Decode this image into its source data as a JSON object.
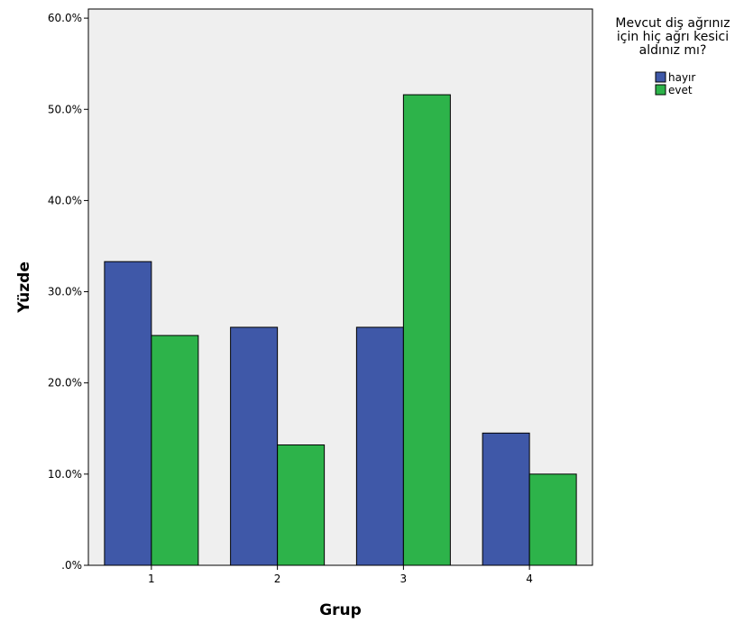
{
  "chart_data": {
    "type": "bar",
    "categories": [
      "1",
      "2",
      "3",
      "4"
    ],
    "series": [
      {
        "name": "hayır",
        "color": "#3f58a8",
        "values": [
          33.3,
          26.1,
          26.1,
          14.5
        ]
      },
      {
        "name": "evet",
        "color": "#2db34a",
        "values": [
          25.2,
          13.2,
          51.6,
          10.0
        ]
      }
    ],
    "xlabel": "Grup",
    "ylabel": "Yüzde",
    "ylim": [
      0,
      61
    ],
    "yticks": [
      0,
      10,
      20,
      30,
      40,
      50,
      60
    ],
    "ytick_labels": [
      ".0%",
      "10.0%",
      "20.0%",
      "30.0%",
      "40.0%",
      "50.0%",
      "60.0%"
    ],
    "legend": {
      "title_lines": [
        "Mevcut diş ağrınız",
        "için hiç ağrı kesici",
        "aldınız mı?"
      ],
      "position": "top-right"
    },
    "plot_background": "#efefef",
    "grid": false
  }
}
